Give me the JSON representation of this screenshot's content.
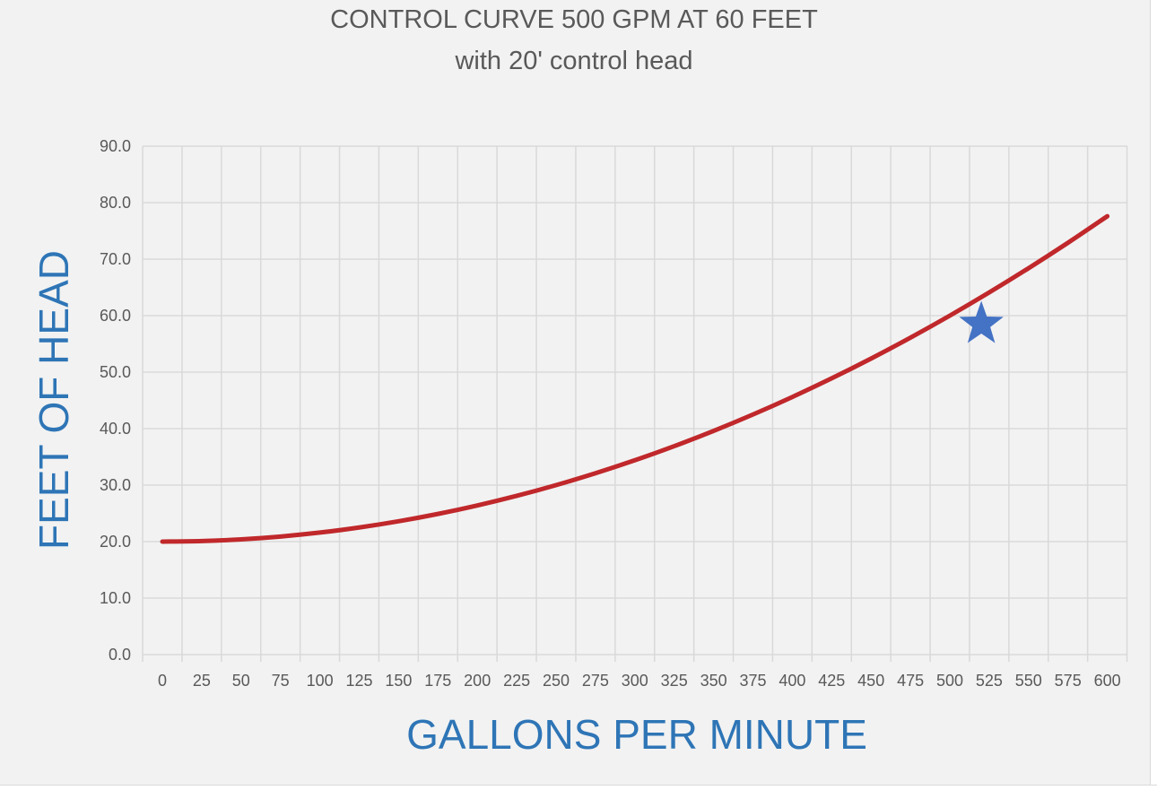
{
  "chart_data": {
    "type": "line",
    "title": "CONTROL CURVE 500 GPM AT 60 FEET",
    "subtitle": "with 20' control head",
    "xlabel": "GALLONS PER MINUTE",
    "ylabel": "FEET OF HEAD",
    "xlim": [
      0,
      600
    ],
    "ylim": [
      0,
      90
    ],
    "grid": true,
    "x_ticks": [
      "0",
      "25",
      "50",
      "75",
      "100",
      "125",
      "150",
      "175",
      "200",
      "225",
      "250",
      "275",
      "300",
      "325",
      "350",
      "375",
      "400",
      "425",
      "450",
      "475",
      "500",
      "525",
      "550",
      "575",
      "600"
    ],
    "y_ticks": [
      "0.0",
      "10.0",
      "20.0",
      "30.0",
      "40.0",
      "50.0",
      "60.0",
      "70.0",
      "80.0",
      "90.0"
    ],
    "series": [
      {
        "color": "#c0282b",
        "x": [
          0,
          25,
          50,
          75,
          100,
          125,
          150,
          175,
          200,
          225,
          250,
          275,
          300,
          325,
          350,
          375,
          400,
          425,
          450,
          475,
          500,
          525,
          550,
          575,
          600
        ],
        "y": [
          20.0,
          20.1,
          20.4,
          20.9,
          21.6,
          22.5,
          23.6,
          24.9,
          26.4,
          28.1,
          30.0,
          32.1,
          34.4,
          36.9,
          39.6,
          42.5,
          45.6,
          48.9,
          52.4,
          56.1,
          60.0,
          64.1,
          68.4,
          72.9,
          77.6
        ]
      }
    ],
    "marker": {
      "shape": "star",
      "color": "#4472c4",
      "x": 520,
      "y": 58.5
    },
    "colors": {
      "background": "#f2f2f2",
      "grid": "#d9d9d9",
      "axis_label": "#2e75b6",
      "tick": "#595959"
    }
  }
}
